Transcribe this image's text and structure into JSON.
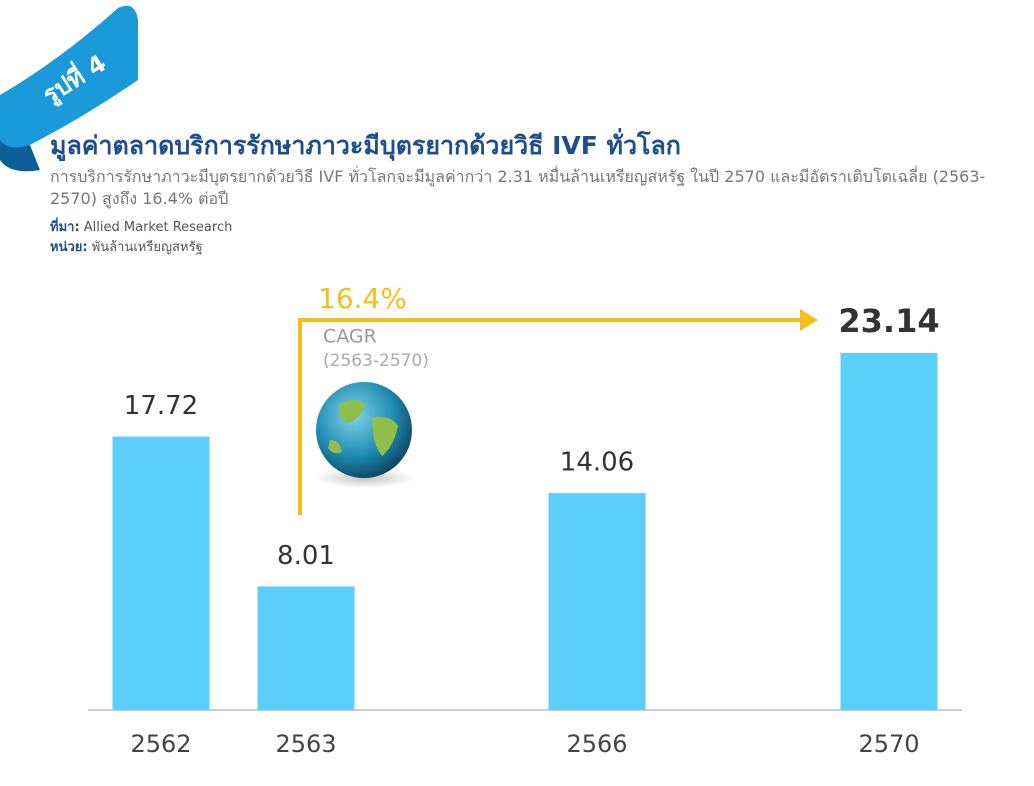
{
  "badge": "รูปที่ 4",
  "chart_data": {
    "type": "bar",
    "title": "มูลค่าตลาดบริการรักษาภาวะมีบุตรยากด้วยวิธี IVF ทั่วโลก",
    "subtitle": "การบริการรักษาภาวะมีบุตรยากด้วยวิธี IVF ทั่วโลกจะมีมูลค่ากว่า 2.31 หมื่นล้านเหรียญสหรัฐ ในปี 2570 และมีอัตราเติบโตเฉลี่ย (2563-2570) สูงถึง 16.4% ต่อปี",
    "source_label": "ที่มา:",
    "source": "Allied Market Research",
    "unit_label": "หน่วย:",
    "unit": "พันล้านเหรียญสหรัฐ",
    "categories": [
      "2562",
      "2563",
      "2566",
      "2570"
    ],
    "values": [
      17.72,
      8.01,
      14.06,
      23.14
    ],
    "color": "#5bcffa",
    "annotation": {
      "value": "16.4%",
      "label": "CAGR",
      "period": "(2563-2570)"
    }
  }
}
